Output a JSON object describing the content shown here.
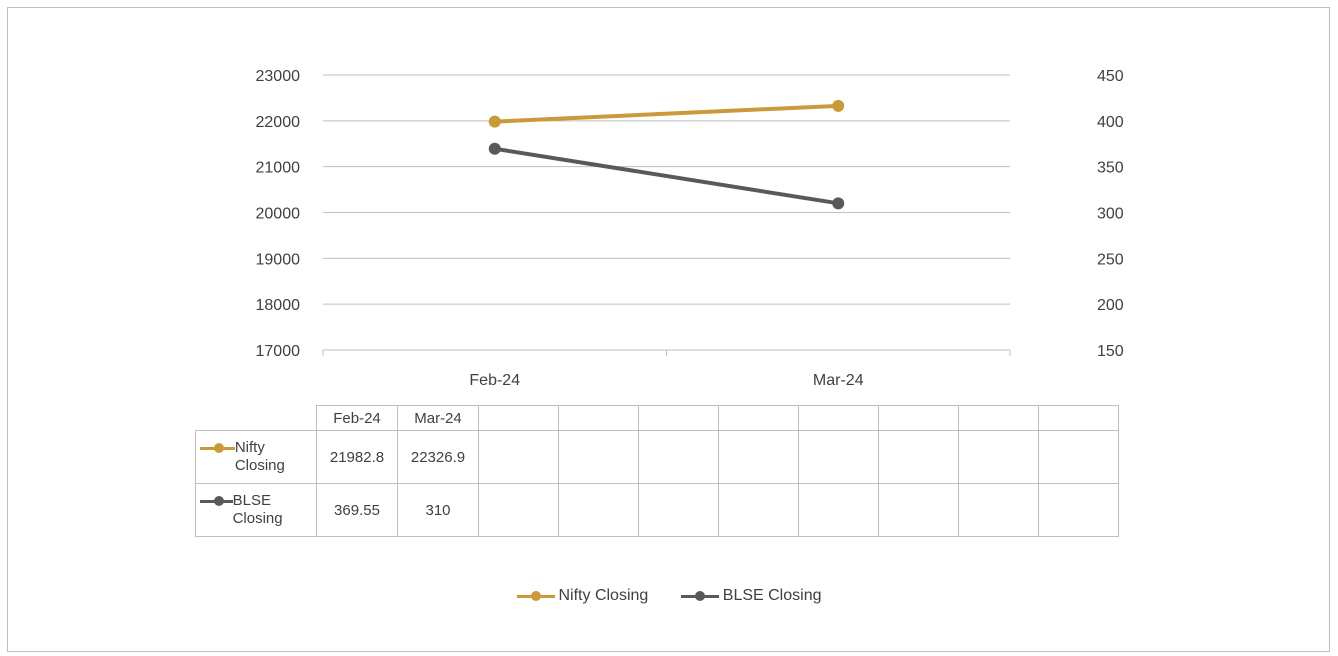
{
  "chart_data": {
    "type": "line",
    "categories": [
      "Feb-24",
      "Mar-24"
    ],
    "series": [
      {
        "name": "Nifty Closing",
        "axis": "left",
        "color": "#C9993A",
        "values": [
          21982.8,
          22326.9
        ]
      },
      {
        "name": "BLSE Closing",
        "axis": "right",
        "color": "#595959",
        "values": [
          369.55,
          310
        ]
      }
    ],
    "y_left": {
      "ylim": [
        17000,
        23000
      ],
      "ticks": [
        "23000",
        "22000",
        "21000",
        "20000",
        "19000",
        "18000",
        "17000"
      ]
    },
    "y_right": {
      "ylim": [
        150,
        450
      ],
      "ticks": [
        "450",
        "400",
        "350",
        "300",
        "250",
        "200",
        "150"
      ]
    },
    "grid": true,
    "legend": "bottom",
    "data_table": {
      "headers": [
        "Feb-24",
        "Mar-24"
      ],
      "rows": [
        {
          "label": "Nifty Closing",
          "values": [
            "21982.8",
            "22326.9"
          ]
        },
        {
          "label": "BLSE Closing",
          "values": [
            "369.55",
            "310"
          ]
        }
      ],
      "empty_columns": 8
    }
  }
}
